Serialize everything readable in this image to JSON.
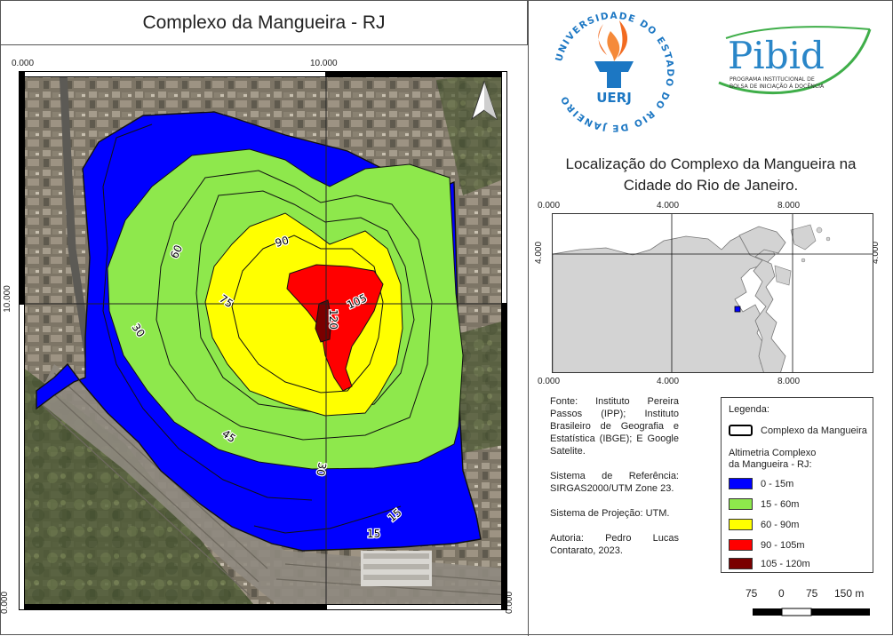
{
  "title": "Complexo da Mangueira - RJ",
  "map": {
    "grid_labels": {
      "top_left": "0.000",
      "top_mid": "10.000",
      "left_mid": "10.000",
      "bottom_left": "0.000",
      "bottom_right_vertical": "0.000"
    },
    "contour_labels": [
      "30",
      "60",
      "75",
      "90",
      "105",
      "120",
      "45",
      "30",
      "15",
      "15"
    ],
    "colors": {
      "zone_0_15": "#0000ff",
      "zone_15_60": "#8ee84c",
      "zone_60_90": "#ffff00",
      "zone_90_105": "#ff0000",
      "zone_105_120": "#7a0000"
    },
    "north_arrow": "north-arrow-icon"
  },
  "logos": {
    "uerj": {
      "name": "UERJ",
      "ring_text": "UNIVERSIDADE DO ESTADO DO RIO DE JANEIRO"
    },
    "pibid": {
      "name": "Pibid",
      "line1": "PROGRAMA INSTITUCIONAL DE",
      "line2": "BOLSA DE INICIAÇÃO À DOCÊNCIA"
    }
  },
  "location": {
    "title_line1": "Localização do Complexo da Mangueira na",
    "title_line2": "Cidade do Rio de Janeiro.",
    "grid_labels": {
      "top_0": "0.000",
      "top_4": "4.000",
      "top_8": "8.000",
      "bottom_0": "0.000",
      "bottom_4": "4.000",
      "bottom_8": "8.000",
      "left_4": "4.000",
      "right_4": "4.000"
    }
  },
  "source_text": {
    "fonte": "Fonte: Instituto Pereira Passos (IPP); Instituto Brasileiro de Geografia e Estatística (IBGE); E Google Satelite.",
    "sistema_ref": "Sistema de Referência: SIRGAS2000/UTM Zone 23.",
    "sistema_proj": "Sistema de Projeção: UTM.",
    "autoria": "Autoria: Pedro Lucas Contarato, 2023."
  },
  "legend": {
    "title": "Legenda:",
    "boundary_label": "Complexo da Mangueira",
    "altimetry_line1": "Altimetria Complexo",
    "altimetry_line2": "da Mangueira - RJ:",
    "items": [
      {
        "label": "0 - 15m",
        "color": "#0000ff"
      },
      {
        "label": "15 - 60m",
        "color": "#8ee84c"
      },
      {
        "label": "60 - 90m",
        "color": "#ffff00"
      },
      {
        "label": "90 - 105m",
        "color": "#ff0000"
      },
      {
        "label": "105 - 120m",
        "color": "#7a0000"
      }
    ]
  },
  "scale_bar": {
    "labels": [
      "75",
      "0",
      "75",
      "150 m"
    ]
  }
}
